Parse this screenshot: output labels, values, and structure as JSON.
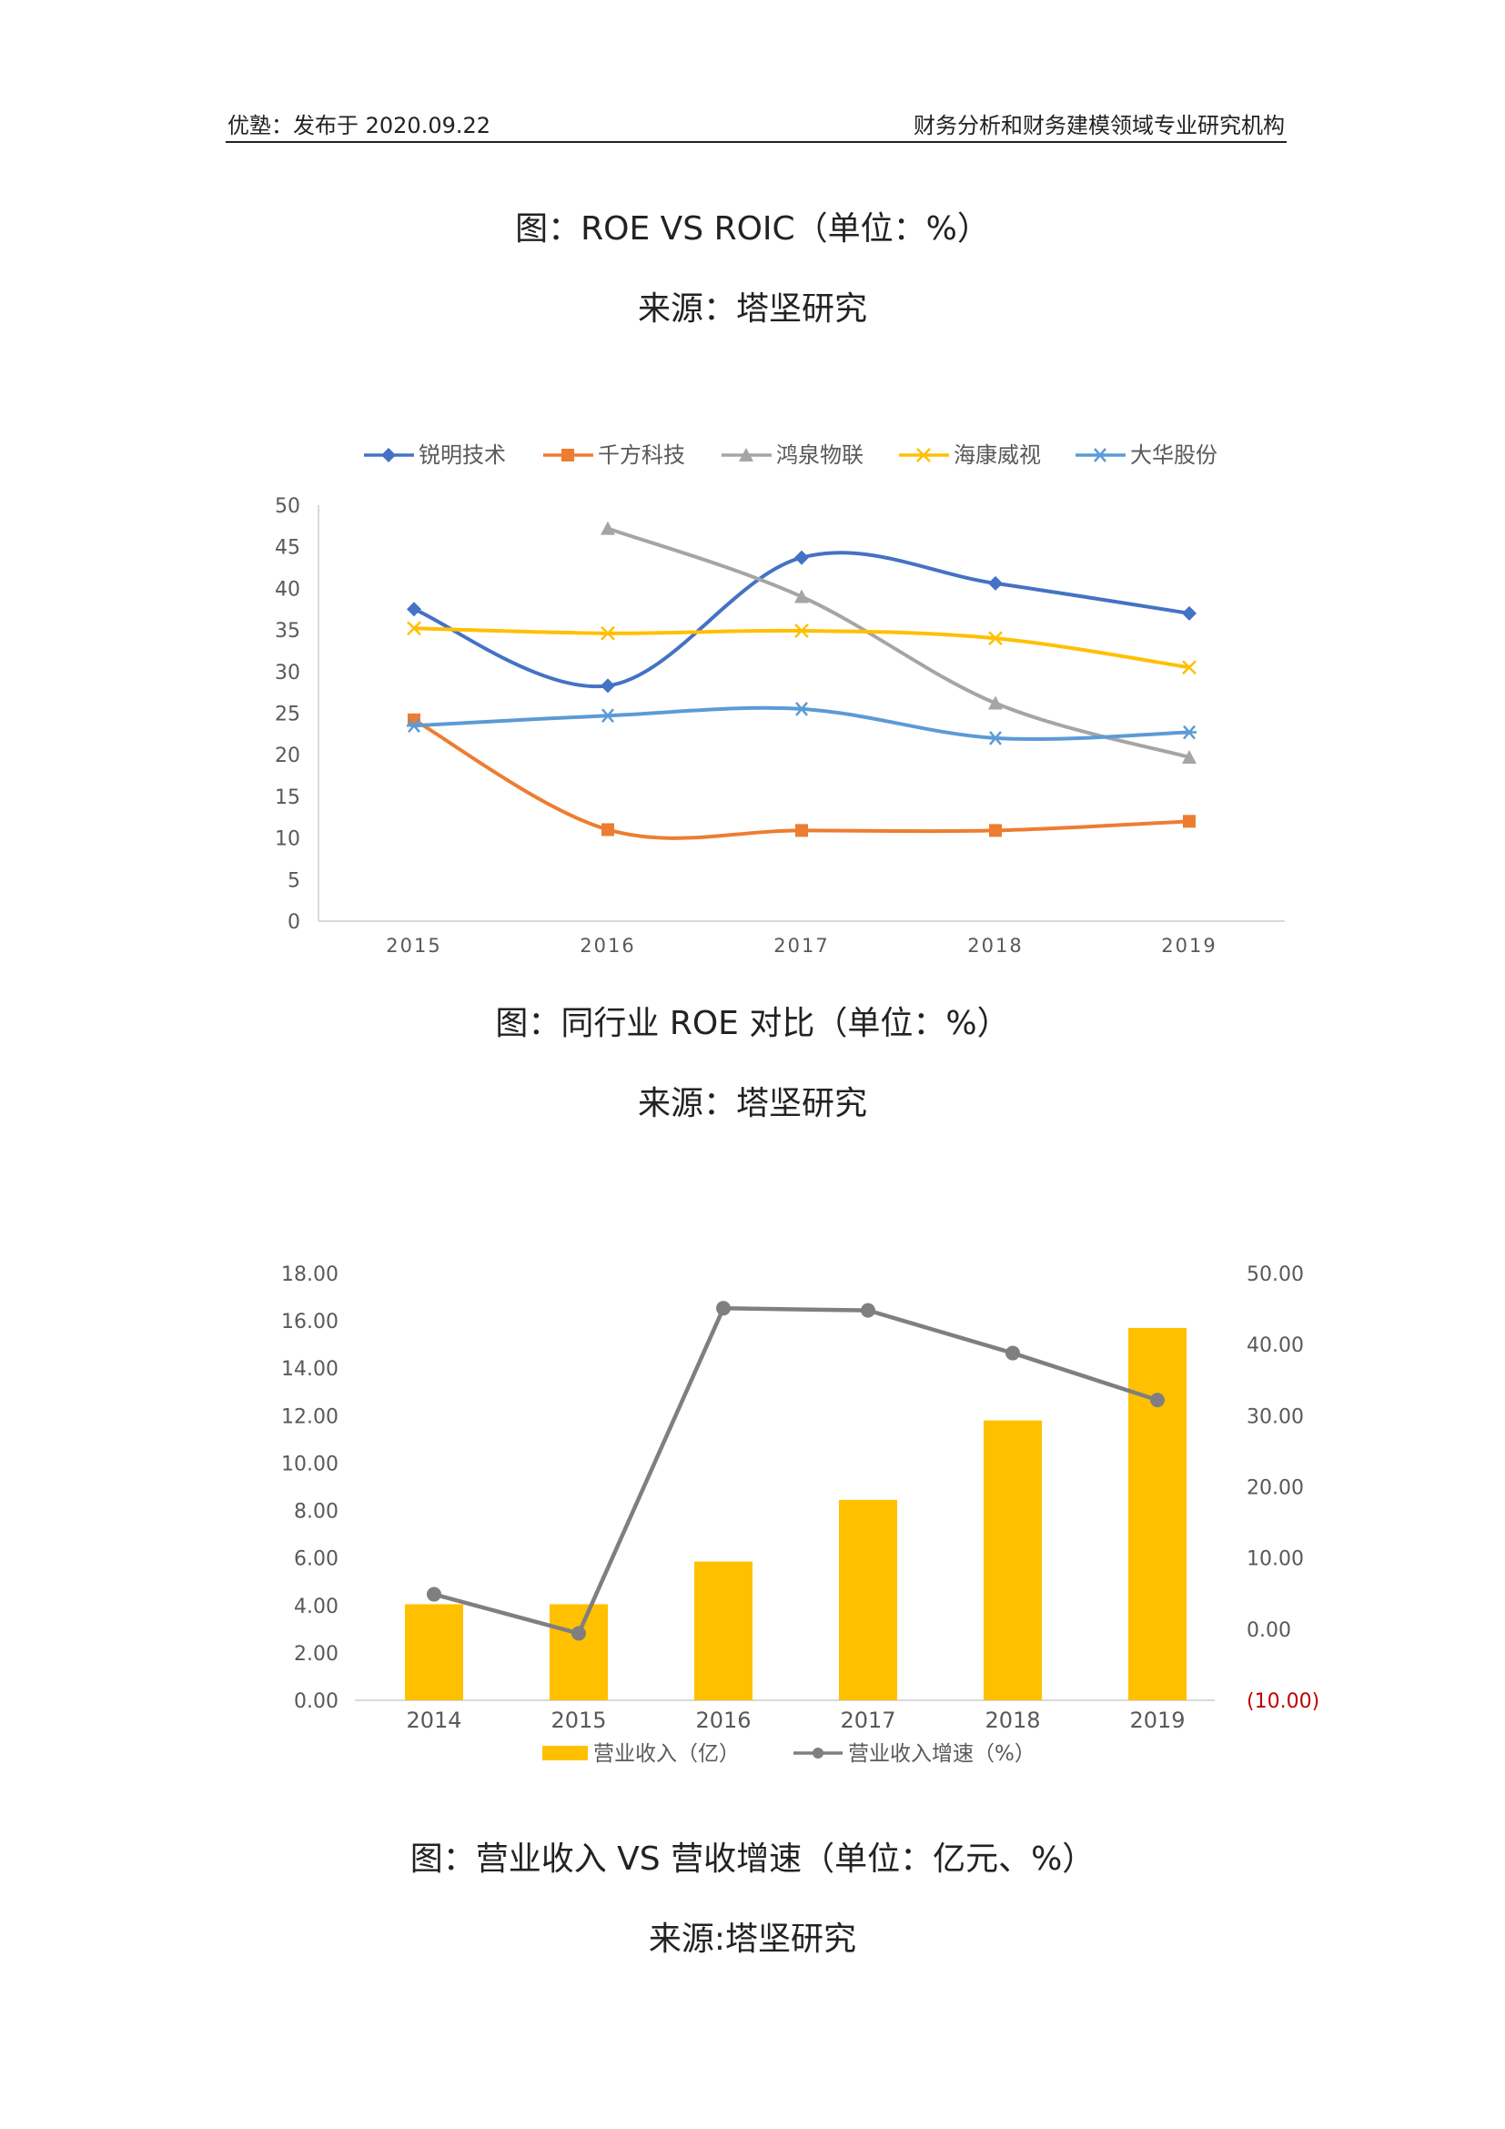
{
  "header": {
    "left": "优塾：发布于 2020.09.22",
    "right": "财务分析和财务建模领域专业研究机构"
  },
  "section1": {
    "caption": "图：ROE VS ROIC（单位：%）",
    "source": "来源：塔坚研究"
  },
  "section2": {
    "caption": "图：同行业 ROE 对比（单位：%）",
    "source": "来源：塔坚研究"
  },
  "section3": {
    "caption": "图：营业收入 VS 营收增速（单位：亿元、%）",
    "source": "来源:塔坚研究"
  },
  "colors": {
    "s1": "#4472C4",
    "s2": "#ED7D31",
    "s3": "#A5A5A5",
    "s4": "#FFC000",
    "s5": "#5B9BD5",
    "bar": "#FFC000",
    "growth": "#7F7F7F",
    "negative": "#C00000"
  },
  "chart_data": [
    {
      "type": "line",
      "categories": [
        "2015",
        "2016",
        "2017",
        "2018",
        "2019"
      ],
      "ylim": [
        0,
        50
      ],
      "yticks": [
        "0",
        "5",
        "10",
        "15",
        "20",
        "25",
        "30",
        "35",
        "40",
        "45",
        "50"
      ],
      "legend": "top",
      "series": [
        {
          "name": "锐明技术",
          "values": [
            37.5,
            28.3,
            43.7,
            40.6,
            37.0
          ],
          "marker": "diamond"
        },
        {
          "name": "千方科技",
          "values": [
            24.2,
            11.0,
            10.9,
            10.9,
            12.0
          ],
          "marker": "square"
        },
        {
          "name": "鸿泉物联",
          "values": [
            null,
            47.2,
            39.0,
            26.2,
            19.7
          ],
          "marker": "triangle"
        },
        {
          "name": "海康威视",
          "values": [
            35.2,
            34.6,
            34.9,
            34.0,
            30.5
          ],
          "marker": "x"
        },
        {
          "name": "大华股份",
          "values": [
            23.5,
            24.7,
            25.5,
            22.0,
            22.7
          ],
          "marker": "asterisk"
        }
      ]
    },
    {
      "type": "bar",
      "categories": [
        "2014",
        "2015",
        "2016",
        "2017",
        "2018",
        "2019"
      ],
      "legend": "bottom",
      "y_left": {
        "ylim": [
          0,
          18
        ],
        "ticks": [
          "0.00",
          "2.00",
          "4.00",
          "6.00",
          "8.00",
          "10.00",
          "12.00",
          "14.00",
          "16.00",
          "18.00"
        ]
      },
      "y_right": {
        "ylim": [
          -10,
          50
        ],
        "ticks": [
          "(10.00)",
          "0.00",
          "10.00",
          "20.00",
          "30.00",
          "40.00",
          "50.00"
        ]
      },
      "series": [
        {
          "name": "营业收入（亿）",
          "type": "bar",
          "axis": "left",
          "values": [
            4.05,
            4.05,
            5.85,
            8.45,
            11.8,
            15.7
          ]
        },
        {
          "name": "营业收入增速（%）",
          "type": "line",
          "axis": "right",
          "values": [
            4.9,
            -0.6,
            45.1,
            44.8,
            38.8,
            32.2
          ]
        }
      ]
    }
  ]
}
